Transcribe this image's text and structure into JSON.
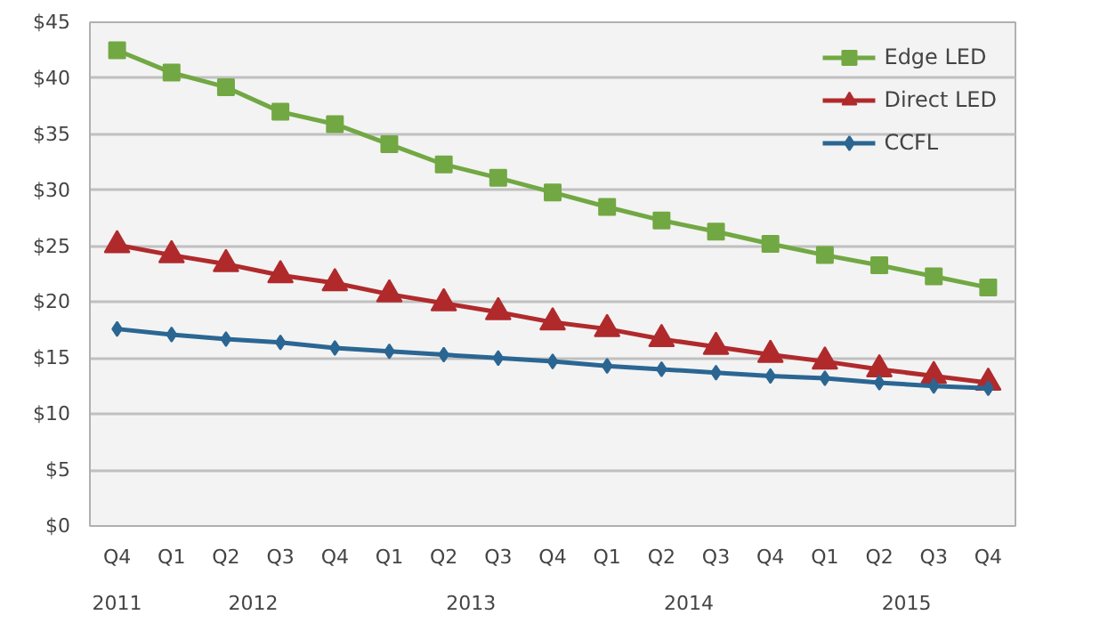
{
  "chart_data": {
    "type": "line",
    "categories": [
      "Q4",
      "Q1",
      "Q2",
      "Q3",
      "Q4",
      "Q1",
      "Q2",
      "Q3",
      "Q4",
      "Q1",
      "Q2",
      "Q3",
      "Q4",
      "Q1",
      "Q2",
      "Q3",
      "Q4"
    ],
    "annotations": [
      "2011",
      "2012",
      "2013",
      "2014",
      "2015"
    ],
    "series": [
      {
        "name": "Edge LED",
        "color": "#72a843",
        "marker": "square",
        "values": [
          42.5,
          40.5,
          39.2,
          37.0,
          35.9,
          34.1,
          32.3,
          31.1,
          29.8,
          28.5,
          27.3,
          26.3,
          25.2,
          24.2,
          23.3,
          22.3,
          21.3
        ]
      },
      {
        "name": "Direct LED",
        "color": "#b02a2c",
        "marker": "triangle",
        "values": [
          25.1,
          24.2,
          23.4,
          22.4,
          21.7,
          20.7,
          19.9,
          19.1,
          18.2,
          17.6,
          16.7,
          16.0,
          15.3,
          14.7,
          14.0,
          13.4,
          12.8
        ]
      },
      {
        "name": "CCFL",
        "color": "#2b6693",
        "marker": "diamond",
        "values": [
          17.6,
          17.1,
          16.7,
          16.4,
          15.9,
          15.6,
          15.3,
          15.0,
          14.7,
          14.3,
          14.0,
          13.7,
          13.4,
          13.2,
          12.8,
          12.5,
          12.3
        ]
      }
    ],
    "ylim": [
      0,
      45
    ],
    "yticks": [
      {
        "value": 0,
        "label": "$0"
      },
      {
        "value": 5,
        "label": "$5"
      },
      {
        "value": 10,
        "label": "$10"
      },
      {
        "value": 15,
        "label": "$15"
      },
      {
        "value": 20,
        "label": "$20"
      },
      {
        "value": 25,
        "label": "$25"
      },
      {
        "value": 30,
        "label": "$30"
      },
      {
        "value": 35,
        "label": "$35"
      },
      {
        "value": 40,
        "label": "$40"
      },
      {
        "value": 45,
        "label": "$45"
      }
    ],
    "grid": "y",
    "legend": "top right",
    "line_style": "solid"
  }
}
